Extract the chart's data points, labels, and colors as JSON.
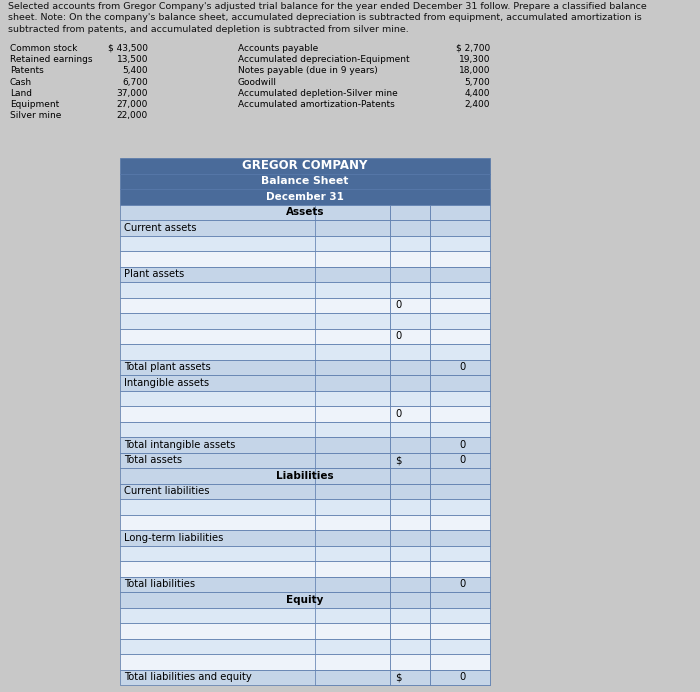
{
  "title_line1": "Selected accounts from Gregor Company's adjusted trial balance for the year ended December 31 follow. Prepare a classified balance",
  "title_line2": "sheet. Note: On the company's balance sheet, accumulated depreciation is subtracted from equipment, accumulated amortization is",
  "title_line3": "subtracted from patents, and accumulated depletion is subtracted from silver mine.",
  "left_labels": [
    "Common stock",
    "Retained earnings",
    "Patents",
    "Cash",
    "Land",
    "Equipment",
    "Silver mine"
  ],
  "left_values": [
    "$ 43,500",
    "13,500",
    "5,400",
    "6,700",
    "37,000",
    "27,000",
    "22,000"
  ],
  "right_labels": [
    "Accounts payable",
    "Accumulated depreciation-Equipment",
    "Notes payable (due in 9 years)",
    "Goodwill",
    "Accumulated depletion-Silver mine",
    "Accumulated amortization-Patents"
  ],
  "right_values": [
    "$ 2,700",
    "19,300",
    "18,000",
    "5,700",
    "4,400",
    "2,400"
  ],
  "company_name": "GREGOR COMPANY",
  "sheet_title": "Balance Sheet",
  "sheet_date": "December 31",
  "header_bg": "#4a6b9a",
  "header_text_color": "#ffffff",
  "subheader_bg": "#c5d5e8",
  "row_bg_light": "#dce8f5",
  "row_bg_white": "#eef3fa",
  "border_color": "#5577aa",
  "fig_bg": "#c8c8c8"
}
